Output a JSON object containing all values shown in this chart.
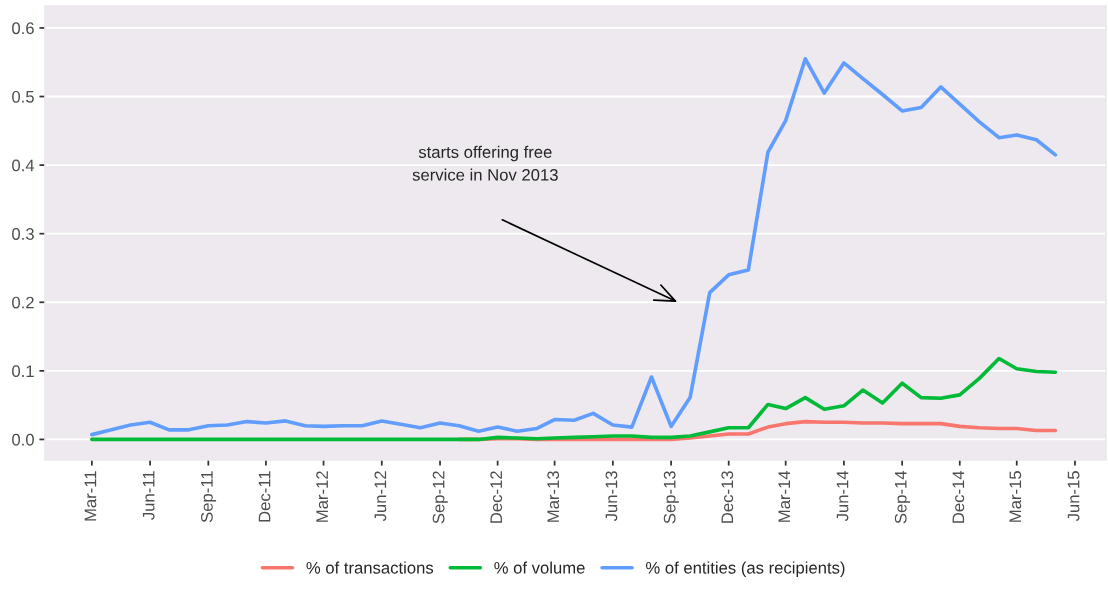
{
  "chart_data": {
    "type": "line",
    "x": [
      "2011-03",
      "2011-04",
      "2011-05",
      "2011-06",
      "2011-07",
      "2011-08",
      "2011-09",
      "2011-10",
      "2011-11",
      "2011-12",
      "2012-01",
      "2012-02",
      "2012-03",
      "2012-04",
      "2012-05",
      "2012-06",
      "2012-07",
      "2012-08",
      "2012-09",
      "2012-10",
      "2012-11",
      "2012-12",
      "2013-01",
      "2013-02",
      "2013-03",
      "2013-04",
      "2013-05",
      "2013-06",
      "2013-07",
      "2013-08",
      "2013-09",
      "2013-10",
      "2013-11",
      "2013-12",
      "2014-01",
      "2014-02",
      "2014-03",
      "2014-04",
      "2014-05",
      "2014-06",
      "2014-07",
      "2014-08",
      "2014-09",
      "2014-10",
      "2014-11",
      "2014-12",
      "2015-01",
      "2015-02",
      "2015-03",
      "2015-04",
      "2015-05"
    ],
    "series": [
      {
        "name": "% of transactions",
        "color": "#f8766d",
        "values": [
          null,
          null,
          null,
          null,
          null,
          null,
          null,
          null,
          null,
          null,
          null,
          null,
          null,
          null,
          null,
          null,
          null,
          null,
          null,
          0,
          0,
          0.001,
          0.001,
          0,
          0,
          0,
          0,
          0,
          0,
          0,
          0,
          0.002,
          0.005,
          0.008,
          0.008,
          0.018,
          0.023,
          0.026,
          0.025,
          0.025,
          0.024,
          0.024,
          0.023,
          0.023,
          0.023,
          0.019,
          0.017,
          0.016,
          0.016,
          0.013,
          0.013
        ]
      },
      {
        "name": "% of volume",
        "color": "#00ba38",
        "values": [
          0,
          0,
          0,
          0,
          0,
          0,
          0,
          0,
          0,
          0,
          0,
          0,
          0,
          0,
          0,
          0,
          0,
          0,
          0,
          0,
          0,
          0.003,
          0.002,
          0.001,
          0.002,
          0.003,
          0.004,
          0.005,
          0.005,
          0.003,
          0.003,
          0.005,
          0.011,
          0.017,
          0.017,
          0.051,
          0.045,
          0.061,
          0.044,
          0.049,
          0.072,
          0.053,
          0.082,
          0.061,
          0.06,
          0.065,
          0.089,
          0.118,
          0.103,
          0.099,
          0.098
        ]
      },
      {
        "name": "% of entities (as recipients)",
        "color": "#619cff",
        "values": [
          0.007,
          0.014,
          0.021,
          0.025,
          0.014,
          0.014,
          0.02,
          0.021,
          0.026,
          0.024,
          0.027,
          0.02,
          0.019,
          0.02,
          0.02,
          0.027,
          0.022,
          0.017,
          0.024,
          0.02,
          0.012,
          0.018,
          0.012,
          0.016,
          0.029,
          0.028,
          0.038,
          0.021,
          0.018,
          0.091,
          0.019,
          0.061,
          0.214,
          0.24,
          0.247,
          0.419,
          0.465,
          0.555,
          0.505,
          0.549,
          0.526,
          0.503,
          0.479,
          0.484,
          0.514,
          0.489,
          0.463,
          0.44,
          0.444,
          0.437,
          0.415
        ]
      }
    ],
    "xlim": [
      "2010-12-17",
      "2015-07-20"
    ],
    "xticks": [
      {
        "value": "2011-03-01",
        "label": "Mar-11"
      },
      {
        "value": "2011-06-01",
        "label": "Jun-11"
      },
      {
        "value": "2011-09-01",
        "label": "Sep-11"
      },
      {
        "value": "2011-12-01",
        "label": "Dec-11"
      },
      {
        "value": "2012-03-01",
        "label": "Mar-12"
      },
      {
        "value": "2012-06-01",
        "label": "Jun-12"
      },
      {
        "value": "2012-09-01",
        "label": "Sep-12"
      },
      {
        "value": "2012-12-01",
        "label": "Dec-12"
      },
      {
        "value": "2013-03-01",
        "label": "Mar-13"
      },
      {
        "value": "2013-06-01",
        "label": "Jun-13"
      },
      {
        "value": "2013-09-01",
        "label": "Sep-13"
      },
      {
        "value": "2013-12-01",
        "label": "Dec-13"
      },
      {
        "value": "2014-03-01",
        "label": "Mar-14"
      },
      {
        "value": "2014-06-01",
        "label": "Jun-14"
      },
      {
        "value": "2014-09-01",
        "label": "Sep-14"
      },
      {
        "value": "2014-12-01",
        "label": "Dec-14"
      },
      {
        "value": "2015-03-01",
        "label": "Mar-15"
      },
      {
        "value": "2015-06-01",
        "label": "Jun-15"
      }
    ],
    "ylim": [
      -0.03,
      0.632
    ],
    "yticks": [
      {
        "value": 0,
        "label": "0.0"
      },
      {
        "value": 0.1,
        "label": "0.1"
      },
      {
        "value": 0.2,
        "label": "0.2"
      },
      {
        "value": 0.3,
        "label": "0.3"
      },
      {
        "value": 0.4,
        "label": "0.4"
      },
      {
        "value": 0.5,
        "label": "0.5"
      },
      {
        "value": 0.6,
        "label": "0.6"
      }
    ],
    "grid": "y",
    "legend": "bottom",
    "line_style": "solid",
    "annotations": [
      "starts offering free\nservice in Nov 2013"
    ]
  }
}
